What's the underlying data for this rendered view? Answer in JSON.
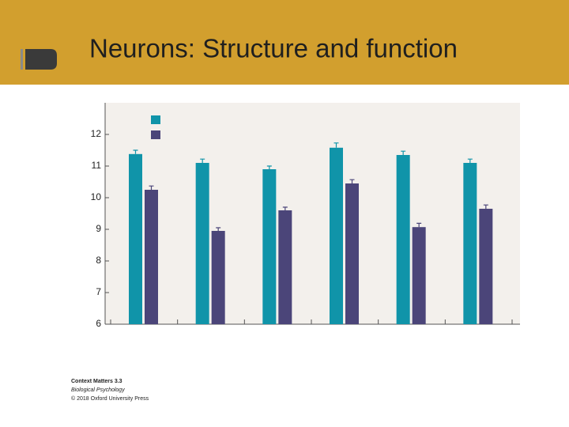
{
  "slide": {
    "title": "Neurons: Structure and function"
  },
  "caption": [
    "Context Matters 3.3",
    "Biological Psychology",
    "© 2018 Oxford University Press"
  ],
  "chart_data": {
    "type": "bar",
    "categories": [
      null,
      null,
      null,
      null,
      null,
      null
    ],
    "series": [
      {
        "color": "#1094a9",
        "values": [
          11.38,
          11.1,
          10.9,
          11.58,
          11.35,
          11.1
        ],
        "errors": [
          0.12,
          0.12,
          0.1,
          0.15,
          0.12,
          0.12
        ]
      },
      {
        "color": "#4b4579",
        "values": [
          10.25,
          8.95,
          9.6,
          10.45,
          9.07,
          9.65
        ],
        "errors": [
          0.12,
          0.1,
          0.1,
          0.12,
          0.12,
          0.12
        ]
      }
    ],
    "ylim": [
      6,
      13
    ],
    "yticks": [
      6,
      7,
      8,
      9,
      10,
      11,
      12
    ],
    "legend": "top-left"
  }
}
